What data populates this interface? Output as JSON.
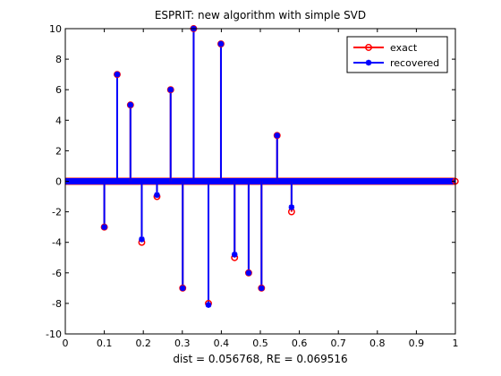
{
  "chart_data": {
    "type": "stem",
    "title": "ESPRIT: new algorithm with simple SVD",
    "xlabel": "dist = 0.056768, RE = 0.069516",
    "ylabel": "",
    "xlim": [
      0,
      1
    ],
    "ylim": [
      -10,
      10
    ],
    "xticks": [
      0,
      0.1,
      0.2,
      0.3,
      0.4,
      0.5,
      0.6,
      0.7,
      0.8,
      0.9,
      1
    ],
    "xtick_labels": [
      "0",
      "0.1",
      "0.2",
      "0.3",
      "0.4",
      "0.5",
      "0.6",
      "0.7",
      "0.8",
      "0.9",
      "1"
    ],
    "yticks": [
      -10,
      -8,
      -6,
      -4,
      -2,
      0,
      2,
      4,
      6,
      8,
      10
    ],
    "ytick_labels": [
      "-10",
      "-8",
      "-6",
      "-4",
      "-2",
      "0",
      "2",
      "4",
      "6",
      "8",
      "10"
    ],
    "grid": false,
    "legend_position": "top-right",
    "series": [
      {
        "name": "exact",
        "color": "#ff0000",
        "marker": "circle",
        "x": [
          0.1,
          0.133,
          0.167,
          0.196,
          0.235,
          0.27,
          0.301,
          0.329,
          0.367,
          0.399,
          0.434,
          0.47,
          0.503,
          0.543,
          0.58
        ],
        "y": [
          -3,
          7,
          5,
          -4,
          -1,
          6,
          -7,
          10,
          -8,
          9,
          -5,
          -6,
          -7,
          3,
          -2
        ]
      },
      {
        "name": "recovered",
        "color": "#0000ff",
        "marker": "star",
        "x": [
          0.1,
          0.133,
          0.167,
          0.196,
          0.235,
          0.27,
          0.301,
          0.329,
          0.367,
          0.399,
          0.434,
          0.47,
          0.503,
          0.543,
          0.58
        ],
        "y": [
          -3,
          7,
          5,
          -3.8,
          -0.9,
          6,
          -7,
          10,
          -8.1,
          9,
          -4.8,
          -6,
          -7,
          3,
          -1.7
        ]
      }
    ]
  }
}
